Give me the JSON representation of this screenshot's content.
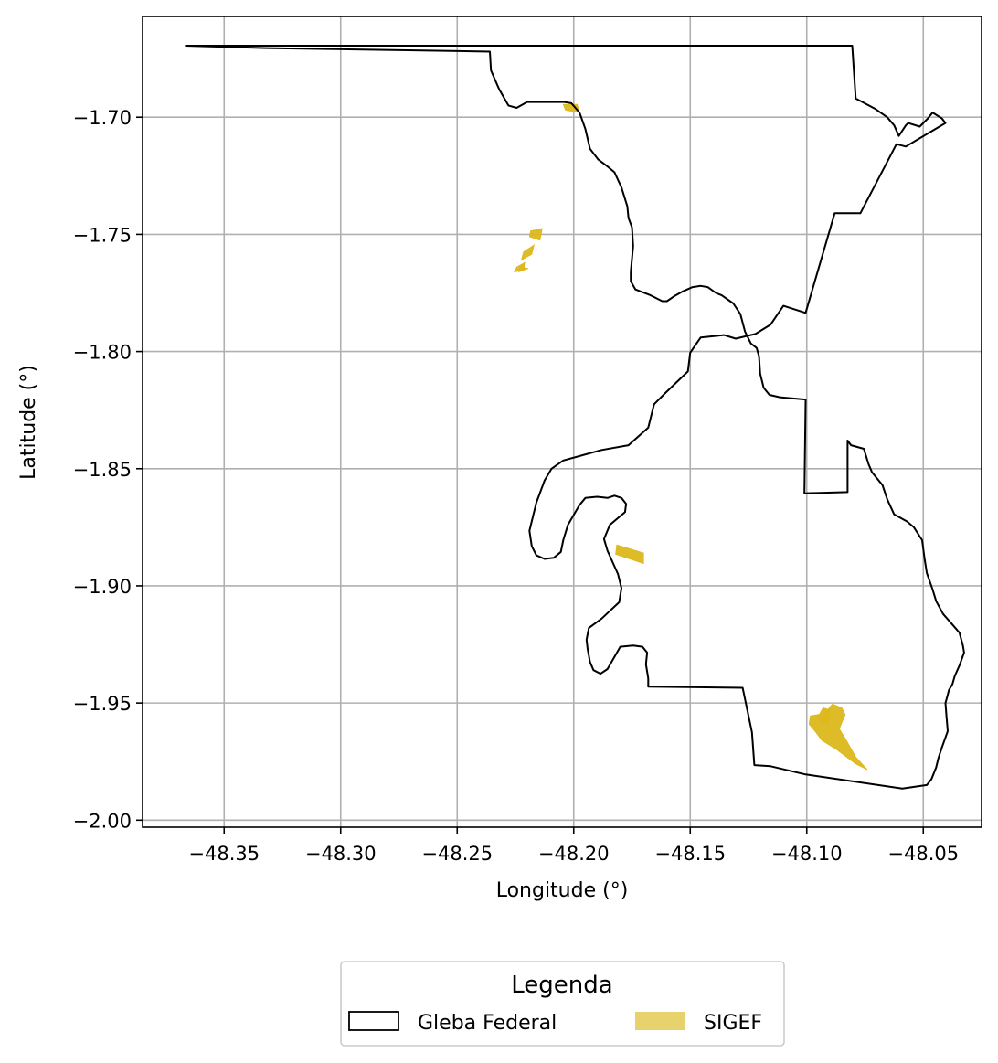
{
  "chart_data": {
    "type": "map",
    "xlabel": "Longitude (°)",
    "ylabel": "Latitude (°)",
    "xlim": [
      -48.385,
      -48.025
    ],
    "ylim": [
      -2.003,
      -1.657
    ],
    "xticks": [
      -48.35,
      -48.3,
      -48.25,
      -48.2,
      -48.15,
      -48.1,
      -48.05
    ],
    "xtick_labels": [
      "−48.35",
      "−48.30",
      "−48.25",
      "−48.20",
      "−48.15",
      "−48.10",
      "−48.05"
    ],
    "yticks": [
      -1.7,
      -1.75,
      -1.8,
      -1.85,
      -1.9,
      -1.95,
      -2.0
    ],
    "ytick_labels": [
      "−1.70",
      "−1.75",
      "−1.80",
      "−1.85",
      "−1.90",
      "−1.95",
      "−2.00"
    ],
    "grid": true,
    "legend": {
      "title": "Legenda",
      "placement": "bottom-center",
      "entries": [
        {
          "label": "Gleba Federal",
          "style": "outline",
          "color": "#000000"
        },
        {
          "label": "SIGEF",
          "style": "fill",
          "color": "#e8d26e"
        }
      ]
    },
    "colors": {
      "gleba_outline": "#000000",
      "sigef_fill": "#dcb81c",
      "grid": "#b0b0b0"
    },
    "gleba_federal": [
      [
        -48.3665,
        -1.6695
      ],
      [
        -48.332,
        -1.6705
      ],
      [
        -48.265,
        -1.6715
      ],
      [
        -48.236,
        -1.672
      ],
      [
        -48.2355,
        -1.68
      ],
      [
        -48.232,
        -1.688
      ],
      [
        -48.228,
        -1.695
      ],
      [
        -48.2245,
        -1.696
      ],
      [
        -48.22,
        -1.6935
      ],
      [
        -48.216,
        -1.6935
      ],
      [
        -48.204,
        -1.6935
      ],
      [
        -48.201,
        -1.694
      ],
      [
        -48.1975,
        -1.698
      ],
      [
        -48.195,
        -1.705
      ],
      [
        -48.193,
        -1.7135
      ],
      [
        -48.1895,
        -1.718
      ],
      [
        -48.1855,
        -1.721
      ],
      [
        -48.1825,
        -1.7235
      ],
      [
        -48.1795,
        -1.73
      ],
      [
        -48.177,
        -1.738
      ],
      [
        -48.1765,
        -1.743
      ],
      [
        -48.175,
        -1.747
      ],
      [
        -48.1745,
        -1.755
      ],
      [
        -48.175,
        -1.7605
      ],
      [
        -48.1755,
        -1.766
      ],
      [
        -48.1755,
        -1.77
      ],
      [
        -48.1735,
        -1.7735
      ],
      [
        -48.167,
        -1.776
      ],
      [
        -48.162,
        -1.7785
      ],
      [
        -48.16,
        -1.7785
      ],
      [
        -48.157,
        -1.7765
      ],
      [
        -48.1535,
        -1.7745
      ],
      [
        -48.149,
        -1.7725
      ],
      [
        -48.1455,
        -1.772
      ],
      [
        -48.1425,
        -1.7725
      ],
      [
        -48.139,
        -1.775
      ],
      [
        -48.1365,
        -1.776
      ],
      [
        -48.1315,
        -1.7795
      ],
      [
        -48.1285,
        -1.784
      ],
      [
        -48.1265,
        -1.7915
      ],
      [
        -48.124,
        -1.7965
      ],
      [
        -48.1215,
        -1.7985
      ],
      [
        -48.1205,
        -1.802
      ],
      [
        -48.12,
        -1.8095
      ],
      [
        -48.1185,
        -1.8155
      ],
      [
        -48.116,
        -1.8185
      ],
      [
        -48.1115,
        -1.8195
      ],
      [
        -48.1005,
        -1.8205
      ],
      [
        -48.101,
        -1.8605
      ],
      [
        -48.0825,
        -1.86
      ],
      [
        -48.0825,
        -1.838
      ],
      [
        -48.081,
        -1.84
      ],
      [
        -48.0755,
        -1.8415
      ],
      [
        -48.0735,
        -1.848
      ],
      [
        -48.072,
        -1.8515
      ],
      [
        -48.0675,
        -1.857
      ],
      [
        -48.0655,
        -1.863
      ],
      [
        -48.0625,
        -1.8695
      ],
      [
        -48.057,
        -1.8725
      ],
      [
        -48.054,
        -1.875
      ],
      [
        -48.0505,
        -1.8805
      ],
      [
        -48.0495,
        -1.888
      ],
      [
        -48.0485,
        -1.8945
      ],
      [
        -48.046,
        -1.9015
      ],
      [
        -48.0445,
        -1.9065
      ],
      [
        -48.0415,
        -1.912
      ],
      [
        -48.0375,
        -1.9165
      ],
      [
        -48.0345,
        -1.92
      ],
      [
        -48.033,
        -1.9255
      ],
      [
        -48.0325,
        -1.9285
      ],
      [
        -48.0345,
        -1.934
      ],
      [
        -48.0365,
        -1.9385
      ],
      [
        -48.0375,
        -1.942
      ],
      [
        -48.039,
        -1.9445
      ],
      [
        -48.0395,
        -1.9465
      ],
      [
        -48.0405,
        -1.95
      ],
      [
        -48.04,
        -1.956
      ],
      [
        -48.0395,
        -1.962
      ],
      [
        -48.042,
        -1.969
      ],
      [
        -48.0435,
        -1.9735
      ],
      [
        -48.0445,
        -1.9775
      ],
      [
        -48.0465,
        -1.9825
      ],
      [
        -48.0485,
        -1.985
      ],
      [
        -48.059,
        -1.9865
      ],
      [
        -48.1005,
        -1.9805
      ],
      [
        -48.1155,
        -1.977
      ],
      [
        -48.1225,
        -1.9765
      ],
      [
        -48.1235,
        -1.9625
      ],
      [
        -48.1255,
        -1.953
      ],
      [
        -48.1275,
        -1.9435
      ],
      [
        -48.168,
        -1.943
      ],
      [
        -48.168,
        -1.9395
      ],
      [
        -48.169,
        -1.9335
      ],
      [
        -48.1685,
        -1.9285
      ],
      [
        -48.1705,
        -1.926
      ],
      [
        -48.1745,
        -1.9255
      ],
      [
        -48.18,
        -1.926
      ],
      [
        -48.1855,
        -1.9355
      ],
      [
        -48.1885,
        -1.9375
      ],
      [
        -48.1915,
        -1.936
      ],
      [
        -48.193,
        -1.9325
      ],
      [
        -48.194,
        -1.927
      ],
      [
        -48.1945,
        -1.923
      ],
      [
        -48.1935,
        -1.918
      ],
      [
        -48.188,
        -1.914
      ],
      [
        -48.1805,
        -1.907
      ],
      [
        -48.1795,
        -1.901
      ],
      [
        -48.181,
        -1.895
      ],
      [
        -48.1855,
        -1.885
      ],
      [
        -48.187,
        -1.88
      ],
      [
        -48.1845,
        -1.874
      ],
      [
        -48.178,
        -1.8685
      ],
      [
        -48.1775,
        -1.865
      ],
      [
        -48.1795,
        -1.8625
      ],
      [
        -48.1825,
        -1.8615
      ],
      [
        -48.1855,
        -1.8625
      ],
      [
        -48.19,
        -1.862
      ],
      [
        -48.195,
        -1.8625
      ],
      [
        -48.1975,
        -1.8655
      ],
      [
        -48.2025,
        -1.874
      ],
      [
        -48.2045,
        -1.8805
      ],
      [
        -48.2055,
        -1.8855
      ],
      [
        -48.2085,
        -1.888
      ],
      [
        -48.2125,
        -1.8885
      ],
      [
        -48.216,
        -1.887
      ],
      [
        -48.218,
        -1.883
      ],
      [
        -48.219,
        -1.8765
      ],
      [
        -48.2175,
        -1.8705
      ],
      [
        -48.216,
        -1.8645
      ],
      [
        -48.2125,
        -1.855
      ],
      [
        -48.2095,
        -1.85
      ],
      [
        -48.2045,
        -1.8465
      ],
      [
        -48.188,
        -1.842
      ],
      [
        -48.1765,
        -1.84
      ],
      [
        -48.168,
        -1.8325
      ],
      [
        -48.1655,
        -1.8225
      ],
      [
        -48.1605,
        -1.8175
      ],
      [
        -48.151,
        -1.8085
      ],
      [
        -48.15,
        -1.8005
      ],
      [
        -48.1455,
        -1.794
      ],
      [
        -48.1355,
        -1.793
      ],
      [
        -48.1305,
        -1.7945
      ],
      [
        -48.122,
        -1.7925
      ],
      [
        -48.1155,
        -1.7885
      ],
      [
        -48.11,
        -1.7805
      ],
      [
        -48.1005,
        -1.7835
      ],
      [
        -48.088,
        -1.741
      ],
      [
        -48.077,
        -1.741
      ],
      [
        -48.0615,
        -1.7115
      ],
      [
        -48.0575,
        -1.7125
      ],
      [
        -48.0405,
        -1.7025
      ],
      [
        -48.042,
        -1.7005
      ],
      [
        -48.046,
        -1.698
      ],
      [
        -48.048,
        -1.7005
      ],
      [
        -48.0515,
        -1.704
      ],
      [
        -48.0565,
        -1.7025
      ],
      [
        -48.0575,
        -1.7035
      ],
      [
        -48.0605,
        -1.708
      ],
      [
        -48.0625,
        -1.7035
      ],
      [
        -48.0655,
        -1.7
      ],
      [
        -48.0705,
        -1.6965
      ],
      [
        -48.079,
        -1.692
      ],
      [
        -48.0805,
        -1.6695
      ],
      [
        -48.1005,
        -1.6695
      ]
    ],
    "sigef": [
      [
        [
          -48.2045,
          -1.6945
        ],
        [
          -48.1985,
          -1.6945
        ],
        [
          -48.1975,
          -1.698
        ],
        [
          -48.2035,
          -1.697
        ]
      ],
      [
        [
          -48.2135,
          -1.7475
        ],
        [
          -48.2185,
          -1.7485
        ],
        [
          -48.219,
          -1.751
        ],
        [
          -48.2145,
          -1.7525
        ]
      ],
      [
        [
          -48.217,
          -1.7545
        ],
        [
          -48.2215,
          -1.7575
        ],
        [
          -48.2225,
          -1.761
        ],
        [
          -48.218,
          -1.7585
        ]
      ],
      [
        [
          -48.221,
          -1.762
        ],
        [
          -48.2245,
          -1.764
        ],
        [
          -48.2255,
          -1.766
        ],
        [
          -48.2215,
          -1.7655
        ]
      ],
      [
        [
          -48.2195,
          -1.7645
        ],
        [
          -48.223,
          -1.764
        ],
        [
          -48.2235,
          -1.766
        ]
      ],
      [
        [
          -48.1815,
          -1.8825
        ],
        [
          -48.17,
          -1.886
        ],
        [
          -48.17,
          -1.8905
        ],
        [
          -48.182,
          -1.8865
        ]
      ],
      [
        [
          -48.0925,
          -1.9545
        ],
        [
          -48.089,
          -1.9505
        ],
        [
          -48.085,
          -1.952
        ],
        [
          -48.0835,
          -1.955
        ],
        [
          -48.086,
          -1.961
        ],
        [
          -48.083,
          -1.966
        ],
        [
          -48.079,
          -1.973
        ],
        [
          -48.074,
          -1.9785
        ],
        [
          -48.079,
          -1.976
        ],
        [
          -48.087,
          -1.97
        ],
        [
          -48.0935,
          -1.966
        ],
        [
          -48.0965,
          -1.962
        ],
        [
          -48.099,
          -1.959
        ],
        [
          -48.0985,
          -1.9555
        ]
      ],
      [
        [
          -48.0955,
          -1.9565
        ],
        [
          -48.093,
          -1.952
        ],
        [
          -48.09,
          -1.953
        ],
        [
          -48.091,
          -1.959
        ]
      ]
    ]
  }
}
